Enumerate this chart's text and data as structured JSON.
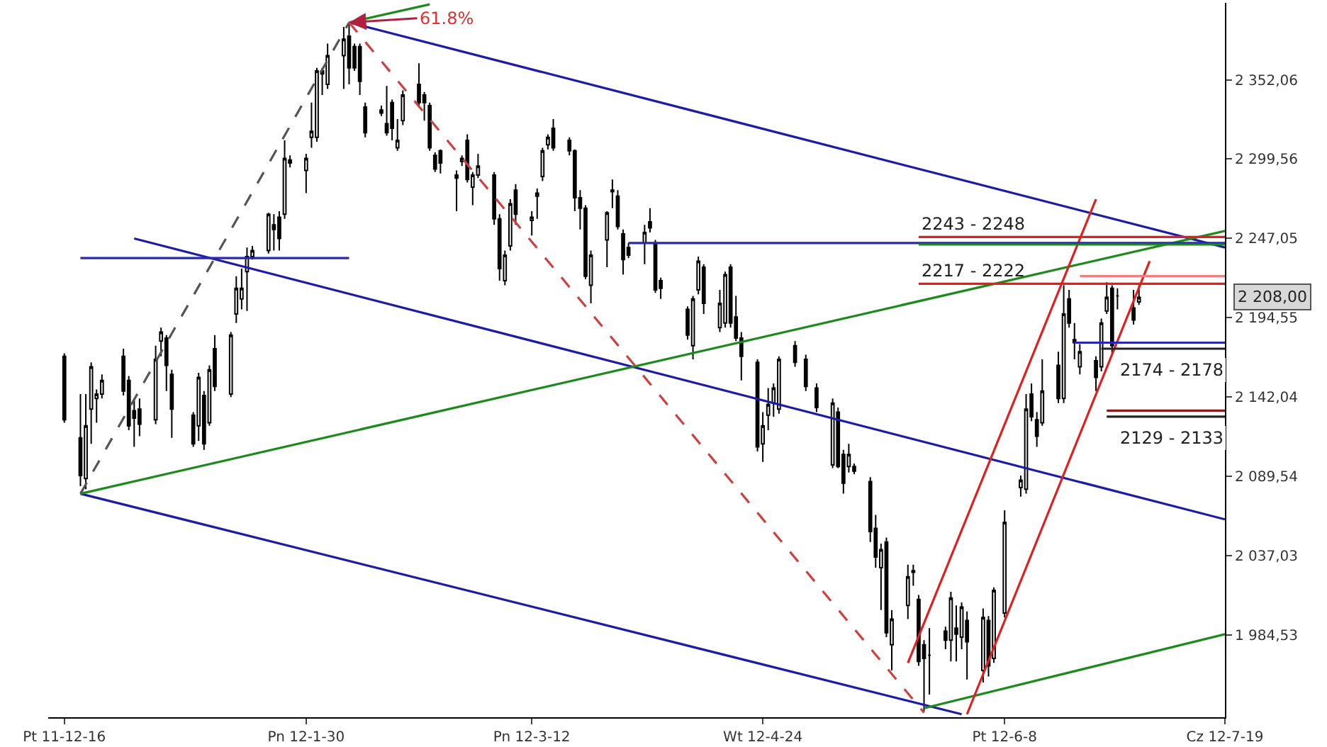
{
  "chart_data": {
    "type": "candlestick",
    "x": [
      "2011-12-16",
      "2011-12-19",
      "2011-12-20",
      "2011-12-21",
      "2011-12-22",
      "2011-12-23",
      "2011-12-27",
      "2011-12-28",
      "2011-12-29",
      "2011-12-30",
      "2012-01-02",
      "2012-01-03",
      "2012-01-04",
      "2012-01-05",
      "2012-01-09",
      "2012-01-10",
      "2012-01-11",
      "2012-01-12",
      "2012-01-13",
      "2012-01-16",
      "2012-01-17",
      "2012-01-18",
      "2012-01-19",
      "2012-01-20",
      "2012-01-23",
      "2012-01-24",
      "2012-01-25",
      "2012-01-26",
      "2012-01-27",
      "2012-01-30",
      "2012-01-31",
      "2012-02-01",
      "2012-02-02",
      "2012-02-03",
      "2012-02-06",
      "2012-02-07",
      "2012-02-08",
      "2012-02-09",
      "2012-02-10",
      "2012-02-13",
      "2012-02-14",
      "2012-02-15",
      "2012-02-16",
      "2012-02-17",
      "2012-02-20",
      "2012-02-21",
      "2012-02-22",
      "2012-02-23",
      "2012-02-24",
      "2012-02-27",
      "2012-02-28",
      "2012-02-29",
      "2012-03-01",
      "2012-03-02",
      "2012-03-05",
      "2012-03-06",
      "2012-03-07",
      "2012-03-08",
      "2012-03-09",
      "2012-03-12",
      "2012-03-13",
      "2012-03-14",
      "2012-03-15",
      "2012-03-16",
      "2012-03-19",
      "2012-03-20",
      "2012-03-21",
      "2012-03-22",
      "2012-03-23",
      "2012-03-26",
      "2012-03-27",
      "2012-03-28",
      "2012-03-29",
      "2012-03-30",
      "2012-04-02",
      "2012-04-03",
      "2012-04-04",
      "2012-04-05",
      "2012-04-10",
      "2012-04-11",
      "2012-04-12",
      "2012-04-13",
      "2012-04-16",
      "2012-04-17",
      "2012-04-18",
      "2012-04-19",
      "2012-04-20",
      "2012-04-23",
      "2012-04-24",
      "2012-04-25",
      "2012-04-26",
      "2012-04-27",
      "2012-04-30",
      "2012-05-02",
      "2012-05-04",
      "2012-05-07",
      "2012-05-08",
      "2012-05-09",
      "2012-05-10",
      "2012-05-11",
      "2012-05-14",
      "2012-05-15",
      "2012-05-16",
      "2012-05-17",
      "2012-05-18",
      "2012-05-21",
      "2012-05-22",
      "2012-05-23",
      "2012-05-24",
      "2012-05-25",
      "2012-05-28",
      "2012-05-29",
      "2012-05-30",
      "2012-05-31",
      "2012-06-01",
      "2012-06-04",
      "2012-06-05",
      "2012-06-06",
      "2012-06-08",
      "2012-06-11",
      "2012-06-12",
      "2012-06-13",
      "2012-06-14",
      "2012-06-15",
      "2012-06-18",
      "2012-06-19",
      "2012-06-20",
      "2012-06-21",
      "2012-06-22",
      "2012-06-25",
      "2012-06-26",
      "2012-06-27",
      "2012-06-28",
      "2012-06-29",
      "2012-07-02",
      "2012-07-03"
    ],
    "ohlc": [
      [
        2169,
        2171,
        2125,
        2127
      ],
      [
        2115,
        2144,
        2083,
        2090
      ],
      [
        2088,
        2144,
        2081,
        2123
      ],
      [
        2134,
        2165,
        2111,
        2162
      ],
      [
        2141,
        2147,
        2125,
        2144
      ],
      [
        2144,
        2157,
        2141,
        2153
      ],
      [
        2169,
        2174,
        2143,
        2146
      ],
      [
        2153,
        2156,
        2120,
        2123
      ],
      [
        2133,
        2141,
        2109,
        2128
      ],
      [
        2134,
        2141,
        2116,
        2124
      ],
      [
        2127,
        2176,
        2124,
        2167
      ],
      [
        2179,
        2188,
        2169,
        2185
      ],
      [
        2181,
        2183,
        2146,
        2163
      ],
      [
        2157,
        2160,
        2115,
        2134
      ],
      [
        2130,
        2132,
        2109,
        2111
      ],
      [
        2123,
        2158,
        2113,
        2155
      ],
      [
        2143,
        2146,
        2107,
        2111
      ],
      [
        2125,
        2163,
        2123,
        2160
      ],
      [
        2174,
        2183,
        2146,
        2149
      ],
      [
        2144,
        2185,
        2142,
        2183
      ],
      [
        2197,
        2222,
        2191,
        2214
      ],
      [
        2207,
        2227,
        2200,
        2214
      ],
      [
        2225,
        2241,
        2199,
        2235
      ],
      [
        2235,
        2242,
        2233,
        2239
      ],
      [
        2239,
        2264,
        2237,
        2263
      ],
      [
        2256,
        2263,
        2239,
        2253
      ],
      [
        2261,
        2265,
        2239,
        2247
      ],
      [
        2263,
        2312,
        2260,
        2300
      ],
      [
        2299,
        2302,
        2294,
        2297
      ],
      [
        2292,
        2303,
        2277,
        2300
      ],
      [
        2314,
        2337,
        2307,
        2318
      ],
      [
        2314,
        2360,
        2311,
        2358
      ],
      [
        2356,
        2360,
        2342,
        2358
      ],
      [
        2349,
        2376,
        2346,
        2368
      ],
      [
        2368,
        2387,
        2346,
        2379
      ],
      [
        2381,
        2390,
        2349,
        2360
      ],
      [
        2374,
        2376,
        2358,
        2360
      ],
      [
        2374,
        2376,
        2342,
        2351
      ],
      [
        2334,
        2337,
        2314,
        2317
      ],
      [
        2332,
        2335,
        2328,
        2330
      ],
      [
        2323,
        2348,
        2315,
        2317
      ],
      [
        2337,
        2339,
        2312,
        2320
      ],
      [
        2307,
        2326,
        2305,
        2312
      ],
      [
        2325,
        2345,
        2322,
        2342
      ],
      [
        2349,
        2363,
        2335,
        2337
      ],
      [
        2342,
        2344,
        2325,
        2337
      ],
      [
        2335,
        2337,
        2305,
        2307
      ],
      [
        2302,
        2304,
        2291,
        2293
      ],
      [
        2305,
        2306,
        2290,
        2297
      ],
      [
        2289,
        2292,
        2265,
        2287
      ],
      [
        2298,
        2302,
        2295,
        2300
      ],
      [
        2312,
        2316,
        2284,
        2286
      ],
      [
        2281,
        2291,
        2269,
        2289
      ],
      [
        2289,
        2303,
        2287,
        2295
      ],
      [
        2289,
        2291,
        2256,
        2260
      ],
      [
        2260,
        2263,
        2219,
        2227
      ],
      [
        2219,
        2239,
        2216,
        2236
      ],
      [
        2242,
        2273,
        2239,
        2270
      ],
      [
        2279,
        2283,
        2256,
        2263
      ],
      [
        2259,
        2265,
        2249,
        2261
      ],
      [
        2275,
        2280,
        2260,
        2277
      ],
      [
        2288,
        2307,
        2285,
        2305
      ],
      [
        2309,
        2316,
        2306,
        2314
      ],
      [
        2320,
        2326,
        2305,
        2307
      ],
      [
        2312,
        2314,
        2302,
        2305
      ],
      [
        2305,
        2306,
        2265,
        2274
      ],
      [
        2274,
        2279,
        2253,
        2267
      ],
      [
        2267,
        2269,
        2220,
        2222
      ],
      [
        2216,
        2239,
        2204,
        2236
      ],
      [
        2246,
        2265,
        2228,
        2264
      ],
      [
        2278,
        2286,
        2267,
        2279
      ],
      [
        2275,
        2279,
        2253,
        2255
      ],
      [
        2250,
        2253,
        2223,
        2233
      ],
      [
        2241,
        2244,
        2234,
        2236
      ],
      [
        2244,
        2256,
        2230,
        2251
      ],
      [
        2258,
        2267,
        2251,
        2254
      ],
      [
        2244,
        2246,
        2211,
        2213
      ],
      [
        2219,
        2221,
        2207,
        2214
      ],
      [
        2200,
        2202,
        2180,
        2183
      ],
      [
        2176,
        2209,
        2167,
        2207
      ],
      [
        2213,
        2235,
        2210,
        2232
      ],
      [
        2228,
        2230,
        2197,
        2204
      ],
      [
        2188,
        2213,
        2185,
        2204
      ],
      [
        2191,
        2225,
        2188,
        2223
      ],
      [
        2228,
        2230,
        2188,
        2191
      ],
      [
        2195,
        2209,
        2179,
        2181
      ],
      [
        2181,
        2185,
        2153,
        2169
      ],
      [
        2165,
        2167,
        2106,
        2109
      ],
      [
        2111,
        2132,
        2099,
        2123
      ],
      [
        2130,
        2148,
        2120,
        2137
      ],
      [
        2138,
        2151,
        2129,
        2148
      ],
      [
        2134,
        2169,
        2131,
        2167
      ],
      [
        2176,
        2179,
        2162,
        2165
      ],
      [
        2167,
        2170,
        2146,
        2149
      ],
      [
        2148,
        2151,
        2132,
        2135
      ],
      [
        2097,
        2141,
        2095,
        2138
      ],
      [
        2132,
        2135,
        2095,
        2096
      ],
      [
        2104,
        2107,
        2078,
        2085
      ],
      [
        2096,
        2111,
        2092,
        2104
      ],
      [
        2096,
        2098,
        2091,
        2093
      ],
      [
        2086,
        2089,
        2046,
        2053
      ],
      [
        2055,
        2064,
        2029,
        2036
      ],
      [
        2029,
        2045,
        2001,
        2041
      ],
      [
        2046,
        2049,
        1983,
        1986
      ],
      [
        1978,
        2001,
        1961,
        1995
      ],
      [
        2004,
        2031,
        1995,
        2023
      ],
      [
        2027,
        2031,
        2017,
        2026
      ],
      [
        2008,
        2011,
        1964,
        1967
      ],
      [
        1978,
        1981,
        1934,
        1969
      ],
      [
        1971,
        1989,
        1945,
        1971
      ],
      [
        1987,
        1990,
        1975,
        1981
      ],
      [
        1981,
        2013,
        1967,
        2009
      ],
      [
        1989,
        2004,
        1967,
        1985
      ],
      [
        1983,
        2006,
        1975,
        2003
      ],
      [
        1994,
        2000,
        1955,
        1980
      ],
      [
        1961,
        2002,
        1953,
        1996
      ],
      [
        1994,
        1997,
        1957,
        1964
      ],
      [
        1969,
        2016,
        1966,
        2014
      ],
      [
        1999,
        2067,
        1996,
        2059
      ],
      [
        2082,
        2090,
        2076,
        2087
      ],
      [
        2081,
        2144,
        2078,
        2134
      ],
      [
        2144,
        2151,
        2126,
        2129
      ],
      [
        2127,
        2132,
        2109,
        2116
      ],
      [
        2125,
        2167,
        2123,
        2146
      ],
      [
        2163,
        2172,
        2138,
        2141
      ],
      [
        2141,
        2216,
        2138,
        2197
      ],
      [
        2207,
        2213,
        2188,
        2191
      ],
      [
        2180,
        2191,
        2167,
        2178
      ],
      [
        2162,
        2177,
        2157,
        2172
      ],
      [
        2166,
        2169,
        2146,
        2155
      ],
      [
        2162,
        2194,
        2159,
        2191
      ],
      [
        2199,
        2218,
        2197,
        2208
      ],
      [
        2214,
        2216,
        2171,
        2176
      ],
      [
        2209,
        2214,
        2200,
        2209
      ],
      [
        2201,
        2213,
        2190,
        2193
      ],
      [
        2205,
        2216,
        2203,
        2208
      ]
    ],
    "series": [
      {
        "type": "line",
        "color": "#1c1ca8",
        "x": [
          "2012-02-07",
          "2012-07-19"
        ],
        "values": [
          2390,
          2241
        ]
      },
      {
        "type": "line",
        "color": "#1c1ca8",
        "x": [
          "2011-12-29",
          "2012-07-19"
        ],
        "values": [
          2247,
          2061
        ]
      },
      {
        "type": "line",
        "color": "#1c1ca8",
        "x": [
          "2011-12-19",
          "2012-05-31"
        ],
        "values": [
          2078,
          1932
        ]
      },
      {
        "type": "line",
        "color": "#1c8a1c",
        "x": [
          "2011-12-19",
          "2012-07-19"
        ],
        "values": [
          2078,
          2252
        ]
      },
      {
        "type": "line",
        "color": "#1c8a1c",
        "x": [
          "2012-02-07",
          "2012-02-22"
        ],
        "values": [
          2390,
          2402
        ]
      },
      {
        "type": "line",
        "color": "#1c8a1c",
        "x": [
          "2012-05-24",
          "2012-07-19"
        ],
        "values": [
          1936,
          1985
        ]
      },
      {
        "type": "line",
        "color": "#e02020",
        "x": [
          "2012-05-21",
          "2012-06-25"
        ],
        "values": [
          1966,
          2273
        ]
      },
      {
        "type": "line",
        "color": "#e02020",
        "x": [
          "2012-06-01",
          "2012-07-05"
        ],
        "values": [
          1932,
          2232
        ]
      },
      {
        "type": "line",
        "color": "#555555",
        "line_style": "dashed",
        "x": [
          "2011-12-19",
          "2012-02-07"
        ],
        "values": [
          2078,
          2390
        ]
      },
      {
        "type": "line",
        "color": "#d04040",
        "line_style": "dashed",
        "x": [
          "2012-02-07",
          "2012-05-24"
        ],
        "values": [
          2390,
          1933
        ]
      },
      {
        "type": "line",
        "color": "#2828b0",
        "x": [
          "2011-12-19",
          "2012-02-07"
        ],
        "values": [
          2234,
          2234
        ]
      },
      {
        "type": "line",
        "color": "#2828b0",
        "x": [
          "2012-03-30",
          "2012-07-19"
        ],
        "values": [
          2244,
          2244
        ]
      },
      {
        "type": "line",
        "color": "#e02020",
        "x": [
          "2012-05-23",
          "2012-07-19"
        ],
        "values": [
          2248,
          2248
        ]
      },
      {
        "type": "line",
        "color": "#1c8a1c",
        "x": [
          "2012-05-23",
          "2012-07-19"
        ],
        "values": [
          2243,
          2243
        ]
      },
      {
        "type": "line",
        "color": "#e02020",
        "x": [
          "2012-05-23",
          "2012-07-19"
        ],
        "values": [
          2217,
          2217
        ]
      },
      {
        "type": "line",
        "color": "#f08080",
        "x": [
          "2012-06-22",
          "2012-07-19"
        ],
        "values": [
          2222,
          2222
        ]
      },
      {
        "type": "line",
        "color": "#2828b0",
        "x": [
          "2012-06-21",
          "2012-07-19"
        ],
        "values": [
          2178,
          2178
        ]
      },
      {
        "type": "line",
        "color": "#222222",
        "x": [
          "2012-06-26",
          "2012-07-19"
        ],
        "values": [
          2174,
          2174
        ]
      },
      {
        "type": "line",
        "color": "#8b1a1a",
        "x": [
          "2012-06-27",
          "2012-07-19"
        ],
        "values": [
          2133,
          2133
        ]
      },
      {
        "type": "line",
        "color": "#222222",
        "x": [
          "2012-06-27",
          "2012-07-19"
        ],
        "values": [
          2129,
          2129
        ]
      }
    ],
    "annotations": [
      {
        "text": "61.8%",
        "x": "2012-02-07",
        "y": 2390
      },
      {
        "text": "2243 - 2248",
        "x": "2012-05-23",
        "y": 2248
      },
      {
        "text": "2217 - 2222",
        "x": "2012-05-23",
        "y": 2217
      },
      {
        "text": "2174 - 2178",
        "x": "2012-06-29",
        "y": 2174
      },
      {
        "text": "2129 - 2133",
        "x": "2012-06-29",
        "y": 2129
      },
      "2 208,00"
    ],
    "xlim": [
      "2011-12-13",
      "2012-07-19"
    ],
    "xticks": [
      {
        "value": "2011-12-16",
        "label": "Pt 11-12-16"
      },
      {
        "value": "2012-01-30",
        "label": "Pn 12-1-30"
      },
      {
        "value": "2012-03-12",
        "label": "Pn 12-3-12"
      },
      {
        "value": "2012-04-24",
        "label": "Wt 12-4-24"
      },
      {
        "value": "2012-06-08",
        "label": "Pt 12-6-8"
      },
      {
        "value": "2012-07-19",
        "label": "Cz 12-7-19"
      }
    ],
    "ylim": [
      1930,
      2403
    ],
    "yticks": [
      {
        "value": 2352.06,
        "label": "2 352,06"
      },
      {
        "value": 2299.56,
        "label": "2 299,56"
      },
      {
        "value": 2247.05,
        "label": "2 247,05"
      },
      {
        "value": 2194.55,
        "label": "2 194,55"
      },
      {
        "value": 2142.04,
        "label": "2 142,04"
      },
      {
        "value": 2089.54,
        "label": "2 089,54"
      },
      {
        "value": 2037.03,
        "label": "2 037,03"
      },
      {
        "value": 1984.53,
        "label": "1 984,53"
      }
    ]
  }
}
